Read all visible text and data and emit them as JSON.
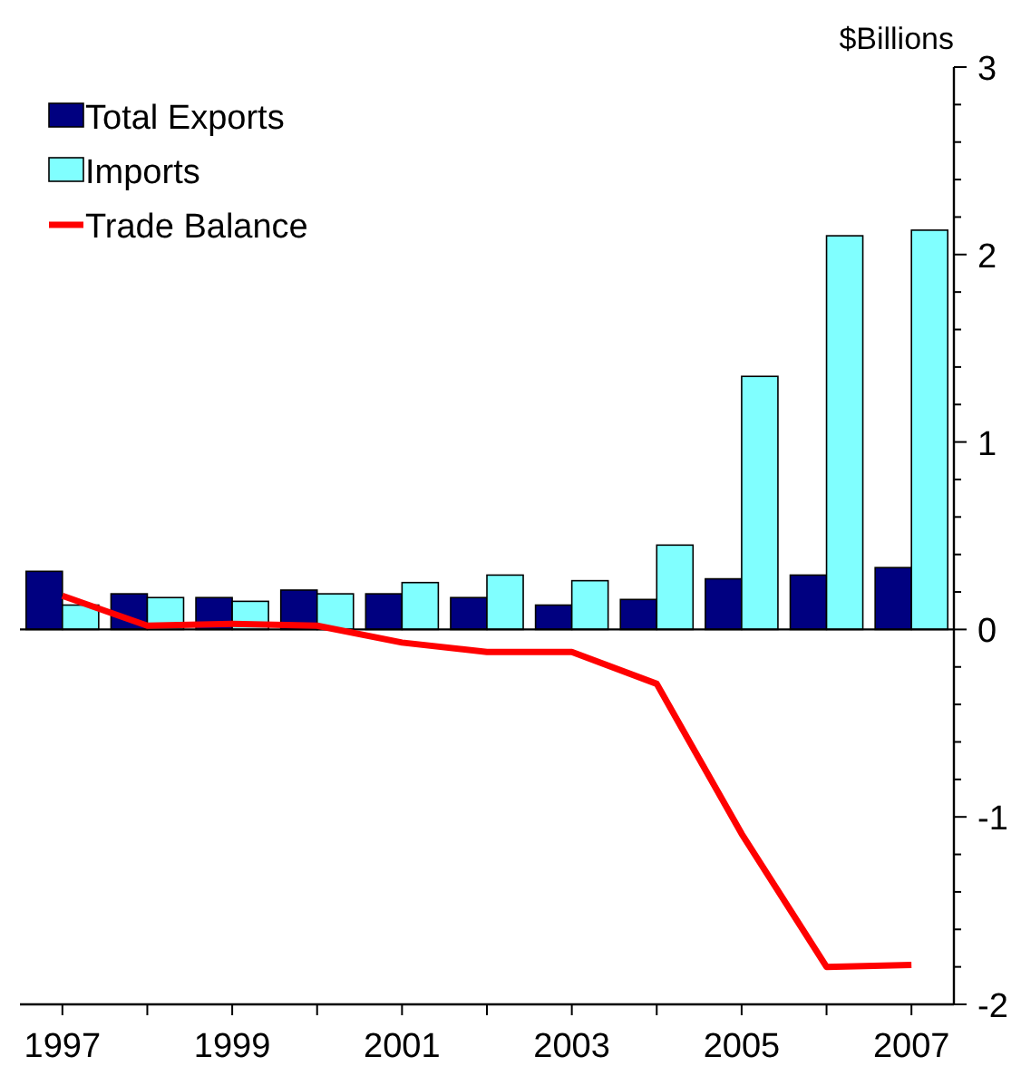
{
  "chart_data": {
    "type": "bar",
    "ylabel": "$Billions",
    "categories": [
      "1997",
      null,
      "1999",
      null,
      "2001",
      null,
      "2003",
      null,
      "2005",
      null,
      "2007"
    ],
    "series": [
      {
        "name": "Total Exports",
        "color": "#000080",
        "values": [
          0.31,
          0.19,
          0.17,
          0.21,
          0.19,
          0.17,
          0.13,
          0.16,
          0.27,
          0.29,
          0.33
        ]
      },
      {
        "name": "Imports",
        "color": "#80ffff",
        "values": [
          0.13,
          0.17,
          0.15,
          0.19,
          0.25,
          0.29,
          0.26,
          0.45,
          1.35,
          2.1,
          2.13
        ]
      },
      {
        "name": "Trade Balance",
        "type": "line",
        "color": "#ff0000",
        "values": [
          0.18,
          0.02,
          0.03,
          0.02,
          -0.07,
          -0.12,
          -0.12,
          -0.29,
          -1.09,
          -1.8,
          -1.79
        ]
      }
    ],
    "ylim": [
      -2,
      3
    ],
    "yticks": [
      -2,
      {
        "value": -1.8,
        "label": null
      },
      {
        "value": -1.6,
        "label": null
      },
      {
        "value": -1.4,
        "label": null
      },
      {
        "value": -1.2,
        "label": null
      },
      -1,
      {
        "value": -0.8,
        "label": null
      },
      {
        "value": -0.6,
        "label": null
      },
      {
        "value": -0.4,
        "label": null
      },
      {
        "value": -0.2,
        "label": null
      },
      0,
      {
        "value": 0.2,
        "label": null
      },
      {
        "value": 0.4,
        "label": null
      },
      {
        "value": 0.6,
        "label": null
      },
      {
        "value": 0.8,
        "label": null
      },
      1,
      {
        "value": 1.2,
        "label": null
      },
      {
        "value": 1.4,
        "label": null
      },
      {
        "value": 1.6,
        "label": null
      },
      {
        "value": 1.8,
        "label": null
      },
      2,
      {
        "value": 2.2,
        "label": null
      },
      {
        "value": 2.4,
        "label": null
      },
      {
        "value": 2.6,
        "label": null
      },
      {
        "value": 2.8,
        "label": null
      },
      3
    ],
    "ref_lines": [
      {
        "axis": "y",
        "value": 0,
        "color": "#000000"
      }
    ],
    "legend": "top left",
    "grid": false
  }
}
